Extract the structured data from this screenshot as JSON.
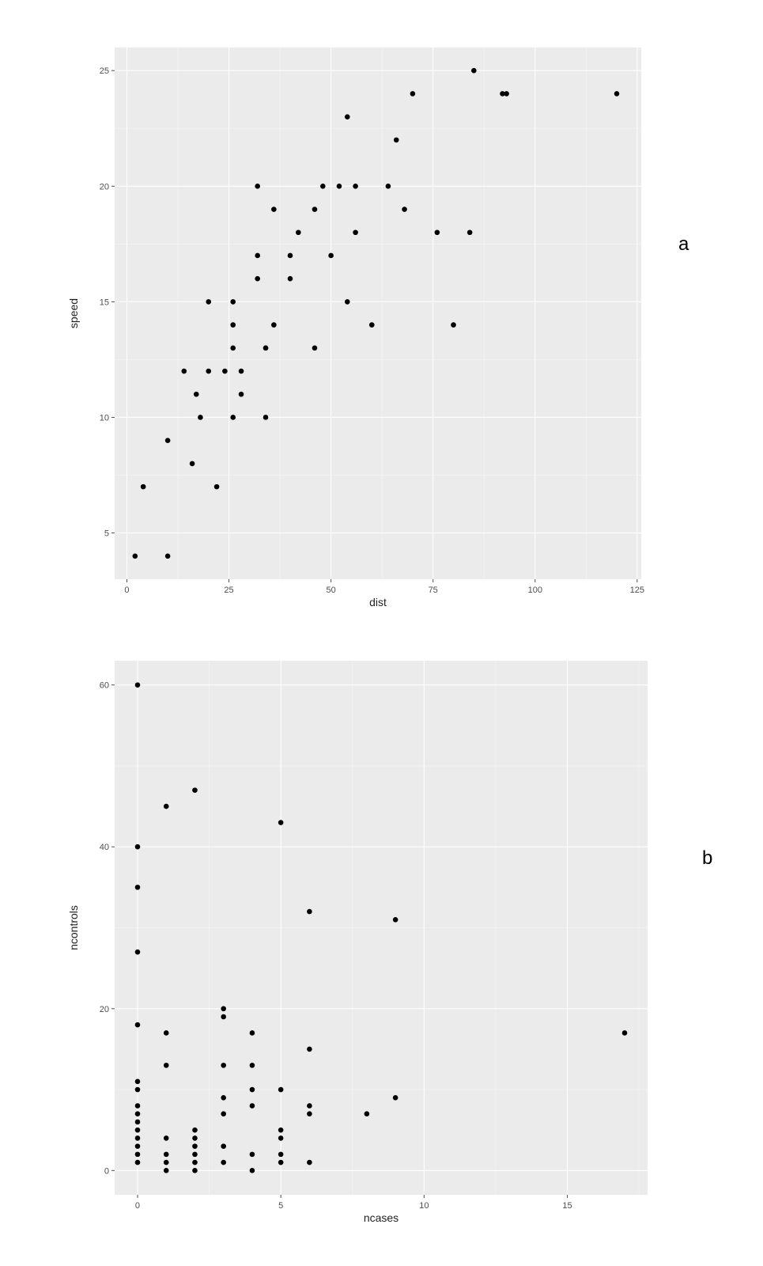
{
  "colors": {
    "panel_background": "#ebebeb",
    "grid": "#ffffff",
    "points": "#000000",
    "tick_text": "#4d4d4d"
  },
  "chart_data": [
    {
      "type": "scatter",
      "panel_label": "a",
      "xlabel": "dist",
      "ylabel": "speed",
      "xlim": [
        -3,
        126
      ],
      "ylim": [
        3,
        26
      ],
      "xticks": [
        0,
        25,
        50,
        75,
        100,
        125
      ],
      "yticks": [
        5,
        10,
        15,
        20,
        25
      ],
      "grid": true,
      "points": [
        [
          2,
          4
        ],
        [
          10,
          4
        ],
        [
          4,
          7
        ],
        [
          22,
          7
        ],
        [
          16,
          8
        ],
        [
          10,
          9
        ],
        [
          18,
          10
        ],
        [
          26,
          10
        ],
        [
          34,
          10
        ],
        [
          17,
          11
        ],
        [
          28,
          11
        ],
        [
          14,
          12
        ],
        [
          20,
          12
        ],
        [
          24,
          12
        ],
        [
          28,
          12
        ],
        [
          26,
          13
        ],
        [
          34,
          13
        ],
        [
          34,
          13
        ],
        [
          46,
          13
        ],
        [
          26,
          14
        ],
        [
          36,
          14
        ],
        [
          60,
          14
        ],
        [
          80,
          14
        ],
        [
          20,
          15
        ],
        [
          26,
          15
        ],
        [
          54,
          15
        ],
        [
          32,
          16
        ],
        [
          40,
          16
        ],
        [
          32,
          17
        ],
        [
          40,
          17
        ],
        [
          50,
          17
        ],
        [
          42,
          18
        ],
        [
          56,
          18
        ],
        [
          76,
          18
        ],
        [
          84,
          18
        ],
        [
          36,
          19
        ],
        [
          46,
          19
        ],
        [
          68,
          19
        ],
        [
          32,
          20
        ],
        [
          48,
          20
        ],
        [
          52,
          20
        ],
        [
          56,
          20
        ],
        [
          64,
          20
        ],
        [
          66,
          22
        ],
        [
          54,
          23
        ],
        [
          70,
          24
        ],
        [
          92,
          24
        ],
        [
          93,
          24
        ],
        [
          120,
          24
        ],
        [
          85,
          25
        ]
      ]
    },
    {
      "type": "scatter",
      "panel_label": "b",
      "xlabel": "ncases",
      "ylabel": "ncontrols",
      "xlim": [
        -0.8,
        17.8
      ],
      "ylim": [
        -3,
        63
      ],
      "xticks": [
        0,
        5,
        10,
        15
      ],
      "yticks": [
        0,
        20,
        40,
        60
      ],
      "grid": true,
      "points": [
        [
          0,
          60
        ],
        [
          0,
          40
        ],
        [
          0,
          35
        ],
        [
          0,
          27
        ],
        [
          0,
          18
        ],
        [
          0,
          11
        ],
        [
          0,
          10
        ],
        [
          0,
          8
        ],
        [
          0,
          7
        ],
        [
          0,
          6
        ],
        [
          0,
          5
        ],
        [
          0,
          4
        ],
        [
          0,
          3
        ],
        [
          0,
          2
        ],
        [
          0,
          1
        ],
        [
          1,
          45
        ],
        [
          1,
          17
        ],
        [
          1,
          13
        ],
        [
          1,
          4
        ],
        [
          1,
          2
        ],
        [
          1,
          1
        ],
        [
          1,
          0
        ],
        [
          2,
          47
        ],
        [
          2,
          5
        ],
        [
          2,
          4
        ],
        [
          2,
          3
        ],
        [
          2,
          2
        ],
        [
          2,
          1
        ],
        [
          2,
          0
        ],
        [
          3,
          20
        ],
        [
          3,
          19
        ],
        [
          3,
          13
        ],
        [
          3,
          9
        ],
        [
          3,
          7
        ],
        [
          3,
          3
        ],
        [
          3,
          1
        ],
        [
          4,
          17
        ],
        [
          4,
          13
        ],
        [
          4,
          10
        ],
        [
          4,
          8
        ],
        [
          4,
          2
        ],
        [
          4,
          0
        ],
        [
          5,
          43
        ],
        [
          5,
          10
        ],
        [
          5,
          5
        ],
        [
          5,
          4
        ],
        [
          5,
          2
        ],
        [
          5,
          1
        ],
        [
          6,
          32
        ],
        [
          6,
          15
        ],
        [
          6,
          8
        ],
        [
          6,
          7
        ],
        [
          6,
          1
        ],
        [
          8,
          7
        ],
        [
          9,
          31
        ],
        [
          9,
          9
        ],
        [
          17,
          17
        ]
      ]
    }
  ]
}
